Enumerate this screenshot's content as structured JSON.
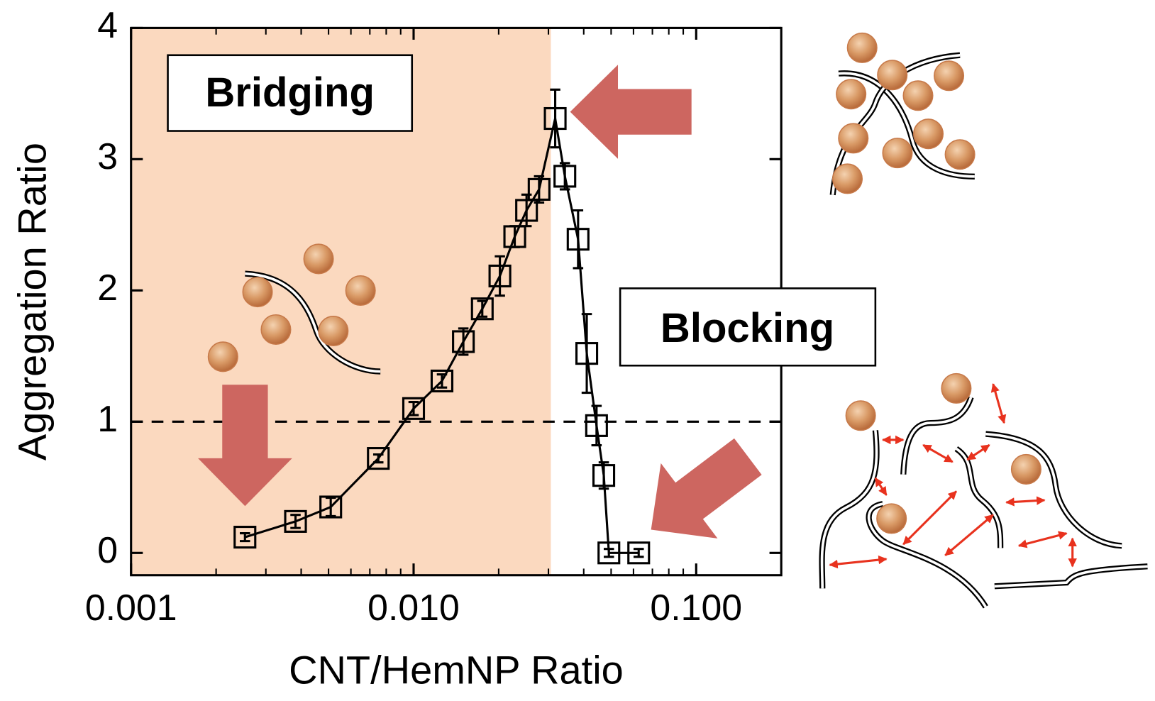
{
  "chart_data": {
    "type": "line",
    "x_label": "CNT/HemNP Ratio",
    "y_label": "Aggregation Ratio",
    "annotations": [
      "Bridging",
      "Blocking"
    ],
    "x": [
      0.00253,
      0.00382,
      0.00509,
      0.0075,
      0.01,
      0.0126,
      0.015,
      0.0175,
      0.0202,
      0.0228,
      0.0251,
      0.0278,
      0.0317,
      0.0343,
      0.0382,
      0.041,
      0.0444,
      0.0471,
      0.0491,
      0.0626
    ],
    "values": [
      0.12,
      0.24,
      0.35,
      0.72,
      1.1,
      1.31,
      1.61,
      1.86,
      2.11,
      2.41,
      2.61,
      2.77,
      3.31,
      2.87,
      2.39,
      1.52,
      0.97,
      0.59,
      0,
      0
    ],
    "errors": [
      0.03,
      0.05,
      0.07,
      0.03,
      0.05,
      0.05,
      0.1,
      0.06,
      0.15,
      0.08,
      0.12,
      0.1,
      0.22,
      0.1,
      0.22,
      0.3,
      0.15,
      0.1,
      0.03,
      0.03
    ],
    "color": "#000000",
    "log_x": true,
    "xlim": [
      0.001,
      0.2
    ],
    "ylim": [
      -0.17,
      4
    ],
    "xticks": [
      {
        "value": 0.001,
        "label": "0.001"
      },
      {
        "value": 0.01,
        "label": "0.010"
      },
      {
        "value": 0.1,
        "label": "0.100"
      }
    ],
    "yticks": [
      0,
      1,
      2,
      3,
      4
    ],
    "reference_line": 1,
    "shade_xlim": [
      0.001,
      0.0306
    ],
    "shade_color": "#fbd9bf"
  }
}
